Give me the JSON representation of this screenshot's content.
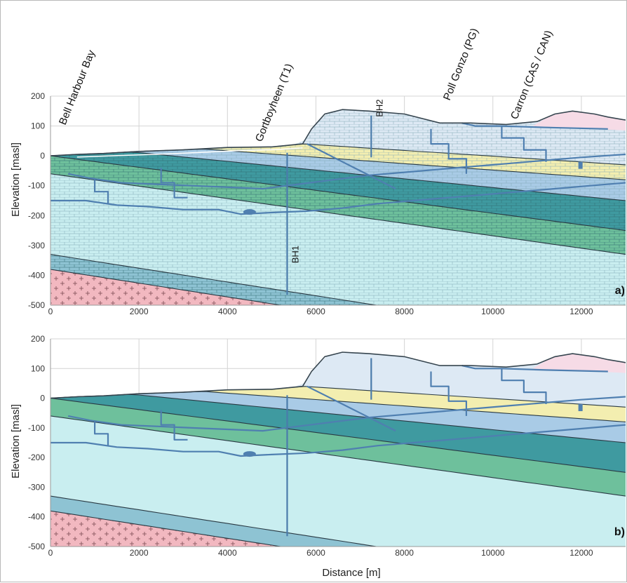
{
  "figure": {
    "x_axis_label": "Distance [m]",
    "y_axis_label": "Elevation [masl]",
    "x_ticks": [
      "0",
      "2000",
      "4000",
      "6000",
      "8000",
      "10000",
      "12000"
    ],
    "y_ticks": [
      "200",
      "100",
      "0",
      "-100",
      "-200",
      "-300",
      "-400",
      "-500"
    ],
    "x_range_m": [
      0,
      13000
    ],
    "y_range_masl": [
      -500,
      200
    ]
  },
  "sites": [
    {
      "label": "Bell Harbour Bay",
      "x_m": 300
    },
    {
      "label": "Gortboyheen (T1)",
      "x_m": 4600
    },
    {
      "label": "Poll Gonzo (PG)",
      "x_m": 8900
    },
    {
      "label": "Carron (CAS / CAN)",
      "x_m": 10600
    }
  ],
  "boreholes": [
    {
      "label": "BH1",
      "x_m": 5350,
      "top_masl": 10,
      "bottom_masl": -465
    },
    {
      "label": "BH2",
      "x_m": 7250,
      "top_masl": 135,
      "bottom_masl": -5
    }
  ],
  "panels": [
    {
      "label": "a)",
      "style": "hatched"
    },
    {
      "label": "b)",
      "style": "flat"
    }
  ],
  "colors": {
    "granite": "#f2b8c0",
    "deep_limestone": "#c9eef0",
    "green_unit": "#6ec09c",
    "teal_unit": "#3f9aa0",
    "light_blue_unit": "#a9cbe6",
    "yellow_unit": "#f3eeb0",
    "upper_blue_unit": "#dde9f4",
    "pink_cap": "#f6dbe6",
    "lower_band": "#8ec3d3",
    "cave": "#4f7fb0"
  }
}
